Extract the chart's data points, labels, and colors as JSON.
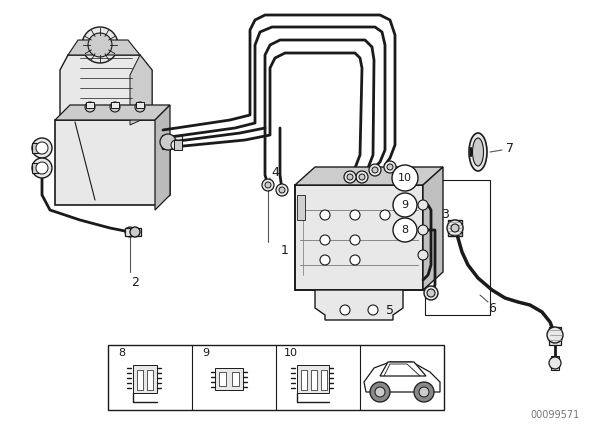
{
  "bg": "#ffffff",
  "lc": "#1a1a1a",
  "gray_light": "#e8e8e8",
  "gray_mid": "#cccccc",
  "gray_dark": "#999999",
  "watermark": "00099571",
  "figsize": [
    6.0,
    4.24
  ],
  "dpi": 100,
  "pipe_lw": 2.0,
  "line_lw": 1.2
}
